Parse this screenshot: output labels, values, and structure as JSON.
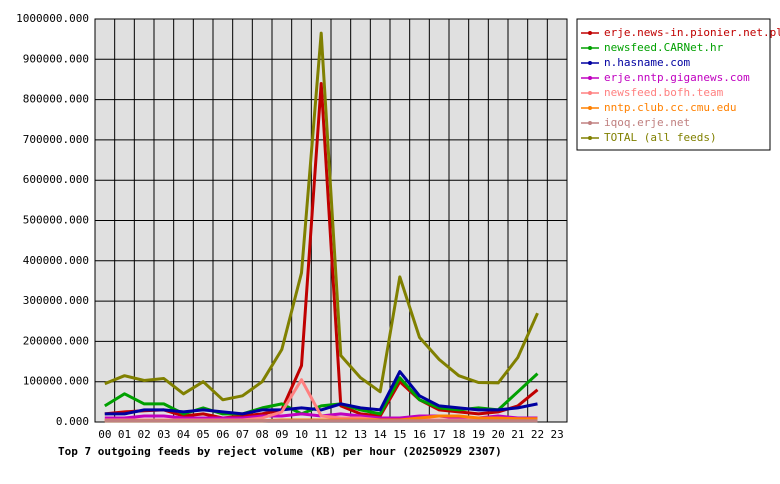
{
  "chart_data": {
    "type": "line",
    "title": "Top 7 outgoing feeds by reject volume (KB) per hour (20250929 2307)",
    "categories": [
      "00",
      "01",
      "02",
      "03",
      "04",
      "05",
      "06",
      "07",
      "08",
      "09",
      "10",
      "11",
      "12",
      "13",
      "14",
      "15",
      "16",
      "17",
      "18",
      "19",
      "20",
      "21",
      "22",
      "23"
    ],
    "ylim": [
      0,
      1000000
    ],
    "yticks": [
      {
        "value": 0,
        "label": "0.000"
      },
      {
        "value": 100000,
        "label": "100000.000"
      },
      {
        "value": 200000,
        "label": "200000.000"
      },
      {
        "value": 300000,
        "label": "300000.000"
      },
      {
        "value": 400000,
        "label": "400000.000"
      },
      {
        "value": 500000,
        "label": "500000.000"
      },
      {
        "value": 600000,
        "label": "600000.000"
      },
      {
        "value": 700000,
        "label": "700000.000"
      },
      {
        "value": 800000,
        "label": "800000.000"
      },
      {
        "value": 900000,
        "label": "900000.000"
      },
      {
        "value": 1000000,
        "label": "1000000.000"
      }
    ],
    "grid": true,
    "legend": "right",
    "series": [
      {
        "name": "erje.news-in.pionier.net.pl",
        "color": "#c00000",
        "values": [
          20000,
          25000,
          28000,
          30000,
          15000,
          20000,
          10000,
          15000,
          20000,
          30000,
          140000,
          840000,
          40000,
          20000,
          15000,
          100000,
          55000,
          30000,
          25000,
          20000,
          25000,
          40000,
          80000,
          null
        ]
      },
      {
        "name": "newsfeed.CARNet.hr",
        "color": "#00a000",
        "values": [
          40000,
          70000,
          45000,
          45000,
          20000,
          35000,
          20000,
          20000,
          35000,
          45000,
          20000,
          40000,
          45000,
          30000,
          20000,
          110000,
          55000,
          35000,
          30000,
          35000,
          30000,
          75000,
          120000,
          null
        ]
      },
      {
        "name": "n.hasname.com",
        "color": "#0000a0",
        "values": [
          20000,
          20000,
          30000,
          30000,
          25000,
          30000,
          25000,
          20000,
          30000,
          30000,
          35000,
          30000,
          45000,
          35000,
          30000,
          125000,
          65000,
          40000,
          35000,
          30000,
          30000,
          35000,
          45000,
          null
        ]
      },
      {
        "name": "erje.nntp.giganews.com",
        "color": "#c000c0",
        "values": [
          10000,
          10000,
          15000,
          15000,
          10000,
          10000,
          10000,
          10000,
          15000,
          15000,
          20000,
          15000,
          20000,
          15000,
          10000,
          10000,
          15000,
          15000,
          10000,
          10000,
          15000,
          10000,
          10000,
          null
        ]
      },
      {
        "name": "newsfeed.bofh.team",
        "color": "#ff8080",
        "values": [
          5000,
          5000,
          5000,
          5000,
          5000,
          5000,
          5000,
          5000,
          10000,
          25000,
          105000,
          15000,
          10000,
          10000,
          5000,
          5000,
          5000,
          5000,
          5000,
          5000,
          5000,
          5000,
          5000,
          null
        ]
      },
      {
        "name": "nntp.club.cc.cmu.edu",
        "color": "#ff8000",
        "values": [
          3000,
          3000,
          3000,
          3000,
          3000,
          3000,
          3000,
          3000,
          3000,
          5000,
          5000,
          5000,
          5000,
          5000,
          5000,
          5000,
          10000,
          15000,
          15000,
          10000,
          10000,
          8000,
          8000,
          null
        ]
      },
      {
        "name": "iqoq.erje.net",
        "color": "#c08080",
        "values": [
          3000,
          3000,
          3000,
          3000,
          3000,
          3000,
          3000,
          3000,
          3000,
          3000,
          3000,
          3000,
          3000,
          3000,
          3000,
          3000,
          3000,
          3000,
          3000,
          3000,
          3000,
          3000,
          3000,
          null
        ]
      },
      {
        "name": "TOTAL (all feeds)",
        "color": "#808000",
        "values": [
          95000,
          115000,
          103000,
          108000,
          70000,
          100000,
          55000,
          65000,
          100000,
          180000,
          370000,
          965000,
          165000,
          110000,
          75000,
          360000,
          210000,
          155000,
          115000,
          98000,
          97000,
          160000,
          270000,
          null
        ]
      }
    ]
  }
}
